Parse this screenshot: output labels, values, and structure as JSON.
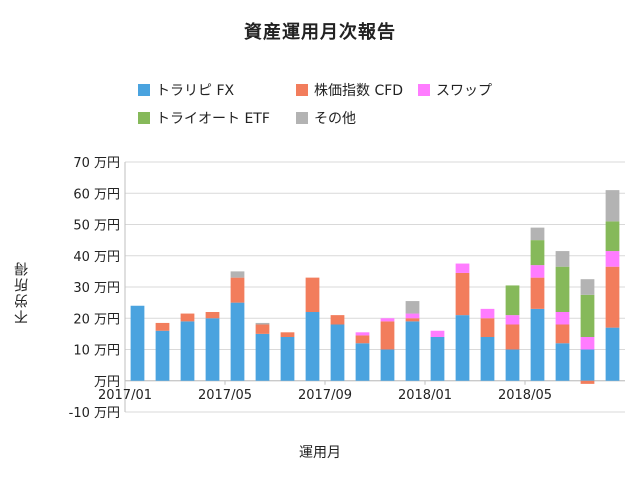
{
  "chart_data": {
    "type": "bar",
    "stacked": true,
    "title": "資産運用月次報告",
    "xlabel": "運用月",
    "ylabel": "不労所得",
    "ylim": [
      -10,
      70
    ],
    "ytick_labels": [
      "70 万円",
      "60 万円",
      "50 万円",
      "40 万円",
      "30 万円",
      "20 万円",
      "10 万円",
      "万円",
      "-10 万円"
    ],
    "xtick_labels": [
      "2017/01",
      "2017/05",
      "2017/09",
      "2018/01",
      "2018/05"
    ],
    "categories": [
      "2017/01",
      "2017/02",
      "2017/03",
      "2017/04",
      "2017/05",
      "2017/06",
      "2017/07",
      "2017/08",
      "2017/09",
      "2017/10",
      "2017/11",
      "2017/12",
      "2018/01",
      "2018/02",
      "2018/03",
      "2018/04",
      "2018/05",
      "2018/06",
      "2018/07",
      "2018/08"
    ],
    "series": [
      {
        "name": "トラリピ FX",
        "color": "#4aa3df",
        "values": [
          24,
          16,
          19,
          20,
          25,
          15,
          14,
          22,
          18,
          12,
          10,
          19,
          14,
          21,
          14,
          10,
          23,
          12,
          10,
          17
        ]
      },
      {
        "name": "株価指数 CFD",
        "color": "#f27d5c",
        "values": [
          0,
          2.5,
          2.5,
          2,
          8,
          3,
          1.5,
          11,
          3,
          2.5,
          9,
          1,
          0,
          13.5,
          6,
          8,
          10,
          6,
          -1,
          19.5
        ]
      },
      {
        "name": "スワップ",
        "color": "#ff7cff",
        "values": [
          0,
          0,
          0,
          0,
          0,
          0,
          0,
          0,
          0,
          1,
          1,
          1.5,
          2,
          3,
          3,
          3,
          4,
          4,
          4,
          5
        ]
      },
      {
        "name": "トライオート ETF",
        "color": "#86b95a",
        "values": [
          0,
          0,
          0,
          0,
          0,
          0,
          0,
          0,
          0,
          0,
          0,
          0,
          0,
          0,
          0,
          9.5,
          8,
          14.5,
          13.5,
          9.5
        ]
      },
      {
        "name": "その他",
        "color": "#b3b3b3",
        "values": [
          0,
          0,
          0,
          0,
          2,
          0.5,
          0,
          0,
          0,
          0,
          0,
          4,
          0,
          0,
          0,
          0,
          4,
          5,
          5,
          10
        ]
      }
    ],
    "grid": true,
    "legend_position": "top"
  }
}
